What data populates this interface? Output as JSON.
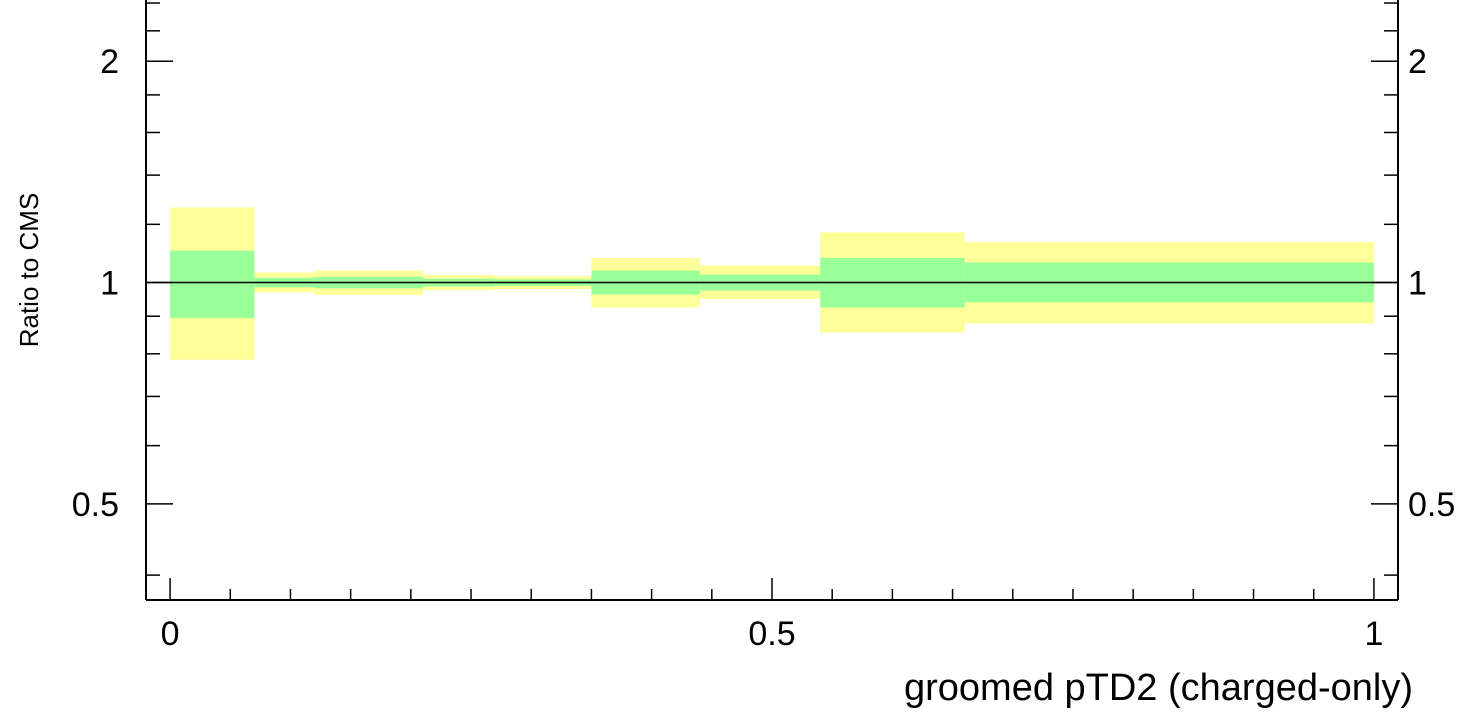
{
  "chart_data": {
    "type": "area",
    "title": "",
    "xlabel": "groomed pTD2 (charged-only)",
    "ylabel": "Ratio to CMS",
    "xlim": [
      -0.02,
      1.02
    ],
    "ylim": [
      0.37,
      2.5
    ],
    "y_scale": "log",
    "grid": false,
    "x_ticks": [
      {
        "value": 0,
        "label": "0"
      },
      {
        "value": 0.5,
        "label": "0.5"
      },
      {
        "value": 1,
        "label": "1"
      }
    ],
    "y_ticks": [
      {
        "value": 0.5,
        "label": "0.5"
      },
      {
        "value": 1,
        "label": "1"
      },
      {
        "value": 2,
        "label": "2"
      }
    ],
    "reference_line": 1,
    "colors": {
      "inner_band": "#99ff99",
      "outer_band": "#ffff99",
      "axis": "#000000"
    },
    "bins": [
      {
        "x_low": 0.0,
        "x_high": 0.07,
        "outer_low": 0.785,
        "outer_high": 1.265,
        "inner_low": 0.895,
        "inner_high": 1.105
      },
      {
        "x_low": 0.07,
        "x_high": 0.12,
        "outer_low": 0.97,
        "outer_high": 1.032,
        "inner_low": 0.985,
        "inner_high": 1.015
      },
      {
        "x_low": 0.12,
        "x_high": 0.21,
        "outer_low": 0.962,
        "outer_high": 1.038,
        "inner_low": 0.982,
        "inner_high": 1.018
      },
      {
        "x_low": 0.21,
        "x_high": 0.27,
        "outer_low": 0.976,
        "outer_high": 1.024,
        "inner_low": 0.988,
        "inner_high": 1.012
      },
      {
        "x_low": 0.27,
        "x_high": 0.35,
        "outer_low": 0.98,
        "outer_high": 1.02,
        "inner_low": 0.99,
        "inner_high": 1.01
      },
      {
        "x_low": 0.35,
        "x_high": 0.44,
        "outer_low": 0.925,
        "outer_high": 1.08,
        "inner_low": 0.963,
        "inner_high": 1.038
      },
      {
        "x_low": 0.44,
        "x_high": 0.54,
        "outer_low": 0.95,
        "outer_high": 1.055,
        "inner_low": 0.975,
        "inner_high": 1.025
      },
      {
        "x_low": 0.54,
        "x_high": 0.66,
        "outer_low": 0.855,
        "outer_high": 1.17,
        "inner_low": 0.925,
        "inner_high": 1.08
      },
      {
        "x_low": 0.66,
        "x_high": 1.0,
        "outer_low": 0.88,
        "outer_high": 1.135,
        "inner_low": 0.94,
        "inner_high": 1.065
      }
    ]
  }
}
